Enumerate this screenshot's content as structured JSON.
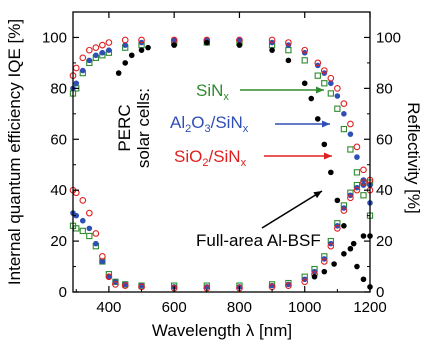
{
  "chart_data": {
    "type": "scatter",
    "xlabel": "Wavelength λ [nm]",
    "ylabel_left": "Internal quantum efficiency IQE [%]",
    "ylabel_right": "Reflectivity [%]",
    "xlim": [
      290,
      1200
    ],
    "ylim": [
      0,
      110
    ],
    "x_ticks": [
      400,
      600,
      800,
      1000,
      1200
    ],
    "x_tick_labels": [
      "400",
      "600",
      "800",
      "1000",
      "1200"
    ],
    "y_ticks": [
      0,
      20,
      40,
      60,
      80,
      100
    ],
    "y_tick_labels": [
      "0",
      "20",
      "40",
      "60",
      "80",
      "100"
    ],
    "y2_tick_labels": [
      "0",
      "20",
      "40",
      "60",
      "80",
      "100"
    ],
    "legend_group_label": [
      "PERC",
      "solar cells:"
    ],
    "series": [
      {
        "name": "SiNx",
        "color": "#2e8b2e",
        "marker": "square-open",
        "iqe": {
          "x": [
            290,
            300,
            320,
            340,
            360,
            380,
            400,
            450,
            500,
            600,
            700,
            800,
            900,
            950,
            1000,
            1040,
            1060,
            1080,
            1100,
            1120,
            1140,
            1160,
            1180,
            1200
          ],
          "y": [
            78,
            80,
            86,
            90,
            92,
            93,
            94,
            96,
            97,
            98,
            98,
            98,
            97,
            95,
            91,
            85,
            82,
            78,
            72,
            64,
            56,
            47,
            38,
            30
          ]
        },
        "reflectivity": {
          "x": [
            290,
            300,
            320,
            340,
            360,
            380,
            400,
            420,
            450,
            500,
            600,
            700,
            800,
            900,
            950,
            1000,
            1030,
            1060,
            1080,
            1100,
            1120,
            1140,
            1160,
            1180,
            1200
          ],
          "y": [
            26,
            25,
            24,
            22,
            18,
            12,
            7,
            4,
            3,
            2.5,
            2.5,
            2.5,
            2.5,
            3,
            3.5,
            6,
            9,
            14,
            20,
            27,
            34,
            39,
            42,
            43,
            43
          ]
        }
      },
      {
        "name": "Al2O3/SiNx",
        "color": "#2f4fb5",
        "marker": "circle-filled",
        "iqe": {
          "x": [
            290,
            300,
            320,
            340,
            360,
            380,
            400,
            450,
            500,
            600,
            700,
            800,
            900,
            950,
            1000,
            1040,
            1060,
            1080,
            1100,
            1120,
            1140,
            1160,
            1180,
            1200
          ],
          "y": [
            80,
            82,
            87,
            91,
            93,
            94,
            95,
            97,
            98,
            99,
            99,
            99,
            98,
            97,
            94,
            89,
            86,
            82,
            77,
            70,
            62,
            53,
            44,
            35
          ]
        },
        "reflectivity": {
          "x": [
            290,
            300,
            320,
            340,
            360,
            380,
            400,
            420,
            450,
            500,
            600,
            700,
            800,
            900,
            950,
            1000,
            1030,
            1060,
            1080,
            1100,
            1120,
            1140,
            1160,
            1180,
            1200
          ],
          "y": [
            31,
            30,
            28,
            25,
            19,
            12,
            6,
            4,
            3,
            2.5,
            2,
            2,
            2,
            2.5,
            3,
            5,
            8,
            13,
            19,
            26,
            33,
            38,
            41,
            42,
            42
          ]
        }
      },
      {
        "name": "SiO2/SiNx",
        "color": "#e02020",
        "marker": "circle-open",
        "iqe": {
          "x": [
            290,
            300,
            320,
            340,
            360,
            380,
            400,
            450,
            500,
            600,
            700,
            800,
            900,
            950,
            1000,
            1040,
            1060,
            1080,
            1100,
            1120,
            1140,
            1160,
            1180,
            1200
          ],
          "y": [
            85,
            88,
            92,
            95,
            96,
            97,
            98,
            99,
            99,
            99,
            99,
            99,
            99,
            98,
            95,
            90,
            87,
            84,
            80,
            74,
            66,
            57,
            48,
            40
          ]
        },
        "reflectivity": {
          "x": [
            290,
            300,
            320,
            340,
            360,
            380,
            400,
            420,
            450,
            500,
            600,
            700,
            800,
            900,
            950,
            1000,
            1030,
            1060,
            1080,
            1100,
            1120,
            1140,
            1160,
            1180,
            1200
          ],
          "y": [
            40,
            39,
            36,
            31,
            23,
            14,
            6,
            3,
            2.5,
            2,
            1.5,
            1.5,
            1.5,
            2,
            2.5,
            4,
            7,
            12,
            18,
            25,
            32,
            37,
            40,
            43,
            44
          ]
        }
      },
      {
        "name": "Full-area Al-BSF",
        "color": "#000000",
        "marker": "circle-filled",
        "iqe": {
          "x": [
            430,
            450,
            470,
            500,
            520,
            600,
            700,
            800,
            900,
            950,
            1000,
            1020,
            1040,
            1060,
            1080,
            1100,
            1120,
            1140,
            1160,
            1180,
            1200
          ],
          "y": [
            86,
            90,
            93,
            95,
            96,
            97,
            98,
            97,
            95,
            91,
            82,
            76,
            68,
            58,
            47,
            36,
            26,
            17,
            10,
            5,
            2
          ]
        },
        "reflectivity": {
          "x": [
            1030,
            1060,
            1090,
            1120,
            1150,
            1180,
            1200
          ],
          "y": [
            6,
            8,
            11,
            15,
            19,
            22,
            22
          ]
        }
      }
    ],
    "annotations": [
      {
        "text": "SiN",
        "sub": "x",
        "color": "#2e8b2e"
      },
      {
        "parts": [
          [
            "Al",
            ""
          ],
          [
            "2",
            "sub"
          ],
          [
            "O",
            ""
          ],
          [
            "3",
            "sub"
          ],
          [
            "/SiN",
            ""
          ],
          [
            "x",
            "sub"
          ]
        ],
        "color": "#2f4fb5"
      },
      {
        "parts": [
          [
            "SiO",
            ""
          ],
          [
            "2",
            "sub"
          ],
          [
            "/SiN",
            ""
          ],
          [
            "x",
            "sub"
          ]
        ],
        "color": "#e02020"
      },
      {
        "text": "Full-area Al-BSF",
        "color": "#000000"
      }
    ]
  }
}
